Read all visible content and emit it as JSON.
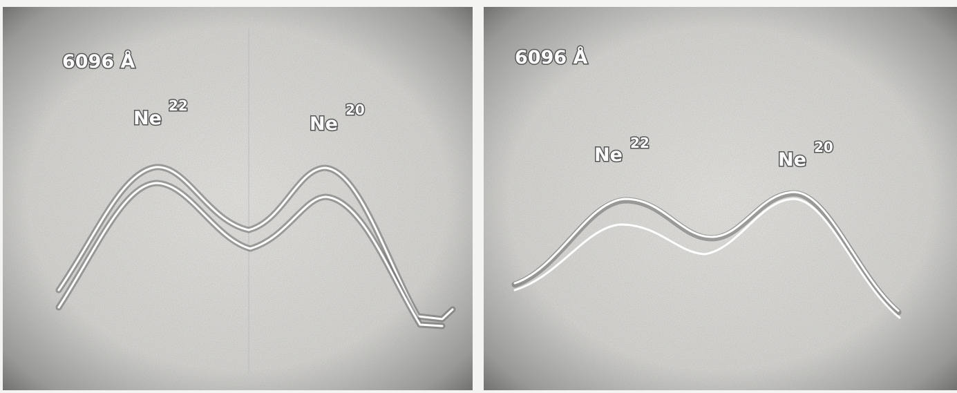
{
  "panels": [
    {
      "wavelength": "6096 Å",
      "peaks": [
        {
          "element": "Ne",
          "isotope": "22"
        },
        {
          "element": "Ne",
          "isotope": "20"
        }
      ]
    },
    {
      "wavelength": "6096 Å",
      "peaks": [
        {
          "element": "Ne",
          "isotope": "22"
        },
        {
          "element": "Ne",
          "isotope": "20"
        }
      ]
    }
  ]
}
